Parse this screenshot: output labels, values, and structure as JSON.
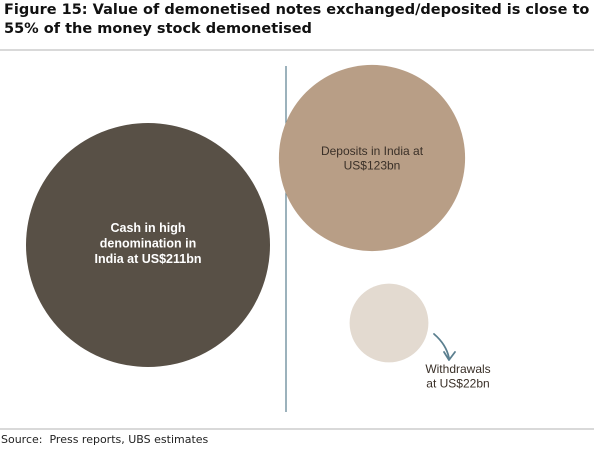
{
  "title": "Figure 15: Value of demonetised notes exchanged/deposited is close to 55% of the money stock demonetised",
  "source": "Source:  Press reports, UBS estimates",
  "chart_data": {
    "type": "bubble",
    "unit": "US$bn",
    "items": [
      {
        "label_lines": [
          "Cash in high",
          "denomination in",
          "India at US$211bn"
        ],
        "value": 211,
        "color": "#585046",
        "text_color": "#ffffff",
        "bold": true
      },
      {
        "label_lines": [
          "Deposits in India at",
          "US$123bn"
        ],
        "value": 123,
        "color": "#b89e86",
        "text_color": "#3a3028",
        "bold": false
      },
      {
        "label_lines": [
          "Withdrawals",
          "at US$22bn"
        ],
        "value": 22,
        "color": "#e3dad0",
        "text_color": "#3a3028",
        "bold": false
      }
    ],
    "colors": {
      "divider": "#5b7f8f",
      "arrow": "#5b7f8f"
    }
  }
}
